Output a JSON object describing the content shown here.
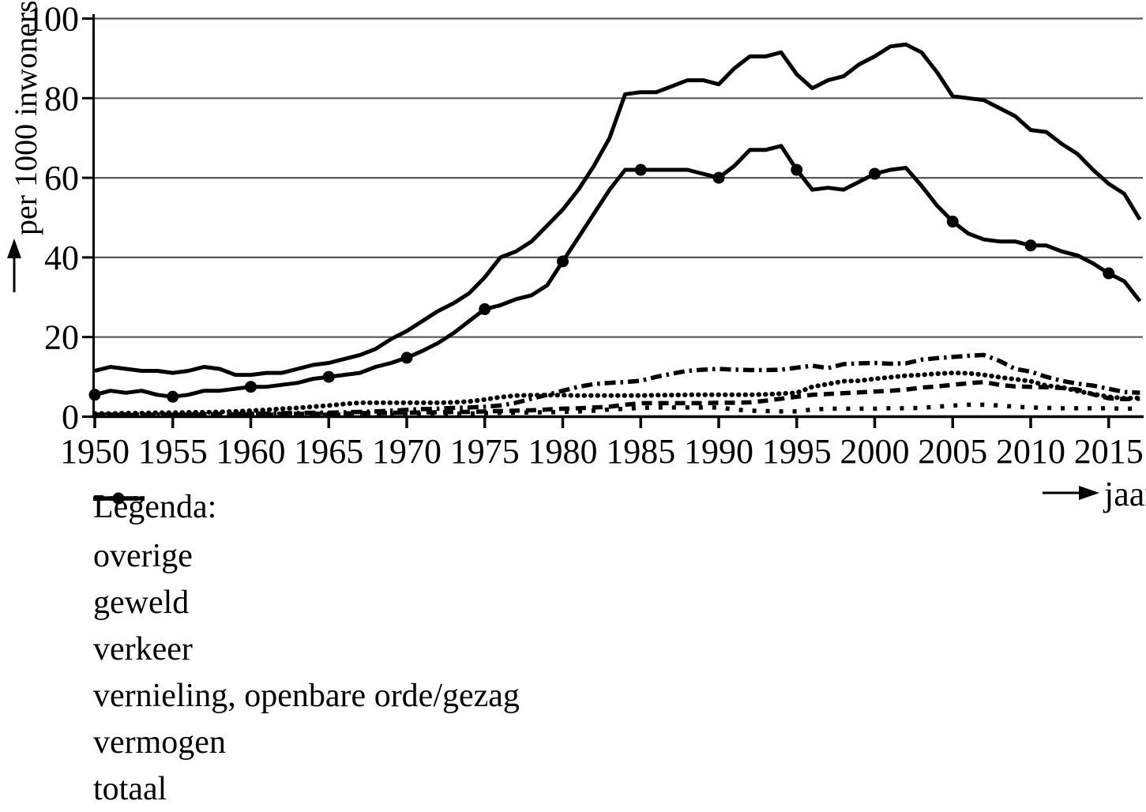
{
  "figure": {
    "y_axis": {
      "title": "per 1000 inwoners",
      "ticks": [
        0,
        20,
        40,
        60,
        80,
        100
      ],
      "min": 0,
      "max": 100
    },
    "x_axis": {
      "title": "jaar",
      "ticks": [
        1950,
        1955,
        1960,
        1965,
        1970,
        1975,
        1980,
        1985,
        1990,
        1995,
        2000,
        2005,
        2010,
        2015
      ],
      "start": 1950,
      "end": 2017
    }
  },
  "legend": {
    "title": "Legenda:"
  },
  "chart_data": {
    "type": "line",
    "title": "",
    "xlabel": "jaar",
    "ylabel": "per 1000 inwoners",
    "ylim": [
      0,
      100
    ],
    "xlim": [
      1950,
      2017.3
    ],
    "grid": true,
    "legend_position": "below-left",
    "x": [
      1950,
      1951,
      1952,
      1953,
      1954,
      1955,
      1956,
      1957,
      1958,
      1959,
      1960,
      1961,
      1962,
      1963,
      1964,
      1965,
      1966,
      1967,
      1968,
      1969,
      1970,
      1971,
      1972,
      1973,
      1974,
      1975,
      1976,
      1977,
      1978,
      1979,
      1980,
      1981,
      1982,
      1983,
      1984,
      1985,
      1986,
      1987,
      1988,
      1989,
      1990,
      1991,
      1992,
      1993,
      1994,
      1995,
      1996,
      1997,
      1998,
      1999,
      2000,
      2001,
      2002,
      2003,
      2004,
      2005,
      2006,
      2007,
      2008,
      2009,
      2010,
      2011,
      2012,
      2013,
      2014,
      2015,
      2016,
      2017
    ],
    "series": [
      {
        "name": "overige",
        "style": "sparse-dotted",
        "marker_interval": 0,
        "values": [
          0.5,
          0.5,
          0.5,
          0.5,
          0.5,
          0.5,
          0.5,
          0.5,
          0.5,
          0.5,
          0.5,
          0.5,
          0.5,
          0.5,
          0.5,
          0.5,
          0.5,
          0.5,
          0.5,
          0.5,
          0.6,
          0.6,
          0.7,
          0.7,
          0.8,
          0.9,
          1,
          1,
          1.1,
          1.1,
          1.2,
          1.3,
          1.5,
          1.8,
          2,
          2.2,
          2.3,
          2.3,
          2.3,
          2.3,
          2.3,
          1.8,
          1.5,
          1.4,
          1.3,
          1.3,
          1.8,
          2,
          2,
          2,
          2,
          2.1,
          2.1,
          2.2,
          2.5,
          2.8,
          3,
          3,
          2.8,
          2.5,
          2.3,
          2.2,
          2.1,
          2.1,
          2.1,
          2.1,
          2,
          2
        ]
      },
      {
        "name": "geweld",
        "style": "dashed",
        "marker_interval": 0,
        "values": [
          0.4,
          0.4,
          0.4,
          0.4,
          0.5,
          0.5,
          0.5,
          0.5,
          0.5,
          0.6,
          0.6,
          0.6,
          0.7,
          0.7,
          0.7,
          0.8,
          0.8,
          0.9,
          0.9,
          1,
          1,
          1.1,
          1.1,
          1.2,
          1.2,
          1.3,
          1.4,
          1.5,
          1.6,
          1.8,
          2,
          2.1,
          2.3,
          2.5,
          3,
          3.4,
          3.4,
          3.4,
          3.4,
          3.4,
          3.5,
          3.5,
          3.6,
          4,
          4.5,
          5,
          5.5,
          5.7,
          5.9,
          6.1,
          6.3,
          6.5,
          6.8,
          7.3,
          7.6,
          8,
          8.4,
          8.7,
          8,
          7.6,
          7.5,
          7.4,
          7.2,
          6.8,
          5.6,
          4.6,
          4.4,
          4.5
        ]
      },
      {
        "name": "verkeer",
        "style": "dotted",
        "marker_interval": 0,
        "values": [
          0.8,
          0.8,
          0.9,
          0.9,
          1,
          1,
          1.1,
          1.1,
          1.2,
          1.3,
          1.5,
          1.7,
          2,
          2.2,
          2.5,
          2.8,
          3.2,
          3.5,
          3.5,
          3.5,
          3.5,
          3.5,
          3.5,
          3.6,
          3.8,
          4.3,
          4.9,
          5.3,
          5.4,
          5.4,
          5.4,
          5.3,
          5.3,
          5.3,
          5.3,
          5.3,
          5.4,
          5.4,
          5.5,
          5.5,
          5.5,
          5.5,
          5.5,
          5.6,
          5.8,
          6,
          7.5,
          8.2,
          8.9,
          9,
          9.5,
          9.9,
          10.3,
          10.5,
          10.8,
          11,
          10.9,
          10.5,
          9.9,
          9.4,
          8.9,
          7.8,
          7.4,
          6.4,
          5.7,
          5,
          4.6,
          4.7
        ]
      },
      {
        "name": "vernieling, openbare orde/gezag",
        "style": "dash-dot",
        "marker_interval": 0,
        "values": [
          0.5,
          0.5,
          0.5,
          0.5,
          0.5,
          0.5,
          0.6,
          0.6,
          0.7,
          0.7,
          0.8,
          0.8,
          0.9,
          0.9,
          1,
          1,
          1.1,
          1.2,
          1.3,
          1.5,
          1.7,
          1.9,
          2,
          2.2,
          2.3,
          2.5,
          2.8,
          3.5,
          4.5,
          5.5,
          6.5,
          7.5,
          8.2,
          8.5,
          8.7,
          9,
          10,
          10.8,
          11.5,
          11.8,
          12,
          11.8,
          11.7,
          11.7,
          11.8,
          12.3,
          12.8,
          12.2,
          13.2,
          13.4,
          13.5,
          13.3,
          13.4,
          14.3,
          14.7,
          15,
          15.3,
          15.5,
          14,
          12,
          11.3,
          10,
          9,
          8.3,
          7.8,
          7,
          6.2,
          6
        ]
      },
      {
        "name": "vermogen",
        "style": "solid-marker",
        "marker_interval": 5,
        "values": [
          5.5,
          6.5,
          6,
          6.5,
          5.5,
          5,
          5.5,
          6.5,
          6.5,
          7,
          7.5,
          7.5,
          8,
          8.5,
          9.5,
          10,
          10.5,
          11,
          12.5,
          13.5,
          14.8,
          16.5,
          18.5,
          21,
          24,
          27,
          28,
          29.5,
          30.5,
          33,
          39,
          45,
          51,
          57,
          62,
          62,
          62,
          62,
          62,
          61,
          60,
          63,
          67,
          67,
          68,
          62,
          57,
          57.5,
          57,
          59,
          61,
          62,
          62.5,
          58,
          53,
          49,
          46,
          44.5,
          44,
          44,
          43,
          43,
          41.5,
          40.5,
          38.5,
          36,
          34,
          29
        ]
      },
      {
        "name": "totaal",
        "style": "solid",
        "marker_interval": 0,
        "values": [
          11.5,
          12.5,
          12,
          11.5,
          11.5,
          11,
          11.5,
          12.5,
          12,
          10.5,
          10.5,
          11,
          11,
          12,
          13,
          13.5,
          14.5,
          15.5,
          17,
          19.5,
          21.5,
          24,
          26.5,
          28.5,
          31,
          35,
          40,
          41.5,
          44,
          48,
          52,
          57,
          63,
          70,
          81,
          81.5,
          81.5,
          83,
          84.5,
          84.5,
          83.5,
          87.5,
          90.5,
          90.5,
          91.5,
          86,
          82.5,
          84.5,
          85.5,
          88.5,
          90.5,
          93,
          93.5,
          91.5,
          86.5,
          80.5,
          80,
          79.5,
          77.5,
          75.5,
          72,
          71.5,
          68.5,
          66,
          62,
          58.5,
          56,
          49.5
        ]
      }
    ],
    "colors": {
      "line": "#000000",
      "grid": "#58585a",
      "background": "#ffffff"
    }
  }
}
